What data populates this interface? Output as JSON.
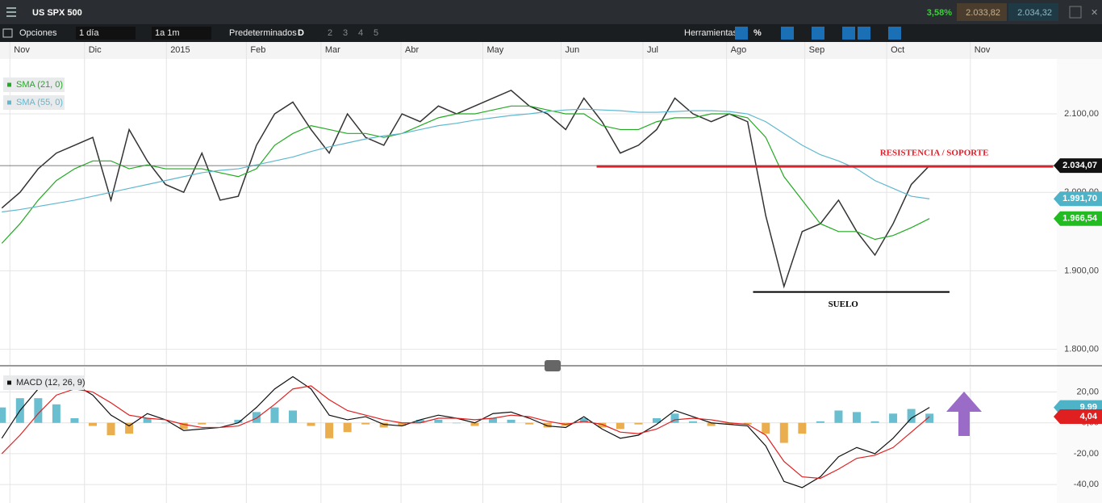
{
  "header": {
    "symbol": "US SPX 500",
    "change": "3,58%",
    "sell": "2.033,82",
    "buy": "2.034,32"
  },
  "toolbar": {
    "options": "Opciones",
    "interval": "1 día",
    "range": "1a 1m",
    "preset": "Predeterminados",
    "layouts": [
      "D",
      "2",
      "3",
      "4",
      "5"
    ],
    "tools": "Herramientas",
    "percent": "%"
  },
  "chart_data": [
    {
      "type": "line",
      "xlim": [
        -0.1,
        58
      ],
      "xticks": [
        {
          "value": 0.8,
          "label": "Nov"
        },
        {
          "value": 4.9,
          "label": "Dic"
        },
        {
          "value": 9.4,
          "label": "2015"
        },
        {
          "value": 13.8,
          "label": "Feb"
        },
        {
          "value": 17.9,
          "label": "Mar"
        },
        {
          "value": 22.3,
          "label": "Abr"
        },
        {
          "value": 26.8,
          "label": "May"
        },
        {
          "value": 31.1,
          "label": "Jun"
        },
        {
          "value": 35.6,
          "label": "Jul"
        },
        {
          "value": 40.2,
          "label": "Ago"
        },
        {
          "value": 44.5,
          "label": "Sep"
        },
        {
          "value": 49.0,
          "label": "Oct"
        },
        {
          "value": 53.6,
          "label": "Nov"
        }
      ],
      "ylim": [
        1780,
        2170
      ],
      "yticks": [
        {
          "value": 1800,
          "label": "1.800,00"
        },
        {
          "value": 1900,
          "label": "1.900,00"
        },
        {
          "value": 2000,
          "label": "2.000,00"
        },
        {
          "value": 2100,
          "label": "2.100,00"
        }
      ],
      "grid": true,
      "x": [
        0,
        1,
        2,
        3,
        4,
        5,
        6,
        7,
        8,
        9,
        10,
        11,
        12,
        13,
        14,
        15,
        16,
        17,
        18,
        19,
        20,
        21,
        22,
        23,
        24,
        25,
        26,
        27,
        28,
        29,
        30,
        31,
        32,
        33,
        34,
        35,
        36,
        37,
        38,
        39,
        40,
        41,
        42,
        43,
        44,
        45,
        46,
        47,
        48,
        49,
        50,
        51
      ],
      "series": [
        {
          "color": "#333333",
          "values": [
            1980,
            2000,
            2030,
            2050,
            2060,
            2070,
            1990,
            2080,
            2040,
            2010,
            2000,
            2050,
            1990,
            1995,
            2060,
            2100,
            2115,
            2080,
            2050,
            2100,
            2070,
            2060,
            2100,
            2090,
            2110,
            2100,
            2110,
            2120,
            2130,
            2110,
            2100,
            2080,
            2120,
            2090,
            2050,
            2060,
            2080,
            2120,
            2100,
            2090,
            2100,
            2090,
            1970,
            1880,
            1950,
            1960,
            1990,
            1950,
            1920,
            1960,
            2010,
            2034.07
          ]
        },
        {
          "name": "SMA (21, 0)",
          "color": "#22aa22",
          "values": [
            1935,
            1960,
            1990,
            2015,
            2030,
            2040,
            2040,
            2030,
            2035,
            2030,
            2030,
            2030,
            2025,
            2020,
            2030,
            2060,
            2075,
            2085,
            2080,
            2075,
            2075,
            2070,
            2075,
            2085,
            2095,
            2100,
            2100,
            2105,
            2110,
            2110,
            2105,
            2100,
            2100,
            2085,
            2080,
            2080,
            2090,
            2095,
            2095,
            2100,
            2100,
            2095,
            2070,
            2020,
            1990,
            1960,
            1950,
            1950,
            1940,
            1945,
            1955,
            1966.54
          ]
        },
        {
          "name": "SMA (55, 0)",
          "color": "#5fb8d0",
          "values": [
            1975,
            1978,
            1982,
            1986,
            1990,
            1995,
            2000,
            2005,
            2010,
            2015,
            2020,
            2025,
            2028,
            2030,
            2035,
            2040,
            2045,
            2052,
            2058,
            2063,
            2068,
            2072,
            2075,
            2080,
            2085,
            2088,
            2092,
            2095,
            2098,
            2100,
            2103,
            2105,
            2106,
            2105,
            2104,
            2102,
            2102,
            2103,
            2104,
            2104,
            2103,
            2100,
            2090,
            2075,
            2060,
            2048,
            2040,
            2030,
            2015,
            2005,
            1995,
            1991.7
          ]
        }
      ],
      "price_tags": [
        {
          "value": 2034.07,
          "label": "2.034,07",
          "color": "#111111"
        },
        {
          "value": 1991.7,
          "label": "1.991,70",
          "color": "#4fb3c8"
        },
        {
          "value": 1966.54,
          "label": "1.966,54",
          "color": "#22bb22"
        }
      ],
      "annotations": [
        {
          "text": "RESISTENCIA / SOPORTE",
          "value": 2033,
          "x": [
            32.7,
            57.8
          ],
          "color": "#e0202a"
        },
        {
          "text": "SUELO",
          "value": 1873,
          "x": [
            41.3,
            52.1
          ],
          "color": "#000000"
        }
      ]
    },
    {
      "type": "line",
      "title": "MACD (12, 26, 9)",
      "xlim": [
        -0.1,
        58
      ],
      "ylim": [
        -52,
        36
      ],
      "yticks": [
        {
          "value": 20,
          "label": "20,00"
        },
        {
          "value": 0,
          "label": "0,00"
        },
        {
          "value": -20,
          "label": "-20,00"
        },
        {
          "value": -40,
          "label": "-40,00"
        }
      ],
      "x": [
        0,
        1,
        2,
        3,
        4,
        5,
        6,
        7,
        8,
        9,
        10,
        11,
        12,
        13,
        14,
        15,
        16,
        17,
        18,
        19,
        20,
        21,
        22,
        23,
        24,
        25,
        26,
        27,
        28,
        29,
        30,
        31,
        32,
        33,
        34,
        35,
        36,
        37,
        38,
        39,
        40,
        41,
        42,
        43,
        44,
        45,
        46,
        47,
        48,
        49,
        50,
        51
      ],
      "series": [
        {
          "kind": "bar",
          "color": "#4fb3c8",
          "negative_color": "#e8a030",
          "values": [
            10,
            16,
            16,
            12,
            3,
            -2,
            -8,
            -7,
            3,
            0,
            -4,
            -1,
            0,
            2,
            7,
            10,
            8,
            -2,
            -10,
            -6,
            -1,
            -3,
            -2,
            2,
            2,
            0,
            -2,
            3,
            2,
            -1,
            -3,
            -2,
            3,
            -3,
            -4,
            -1,
            3,
            6,
            1,
            -2,
            -1,
            -1,
            -7,
            -13,
            -7,
            1,
            8,
            7,
            1,
            6,
            9,
            5.95
          ]
        },
        {
          "color": "#111111",
          "values": [
            -10,
            8,
            22,
            30,
            25,
            18,
            5,
            -2,
            6,
            2,
            -5,
            -4,
            -3,
            0,
            10,
            22,
            30,
            22,
            5,
            2,
            4,
            -1,
            -2,
            2,
            5,
            3,
            0,
            6,
            7,
            3,
            -2,
            -3,
            4,
            -4,
            -10,
            -8,
            -1,
            8,
            4,
            0,
            -1,
            -2,
            -15,
            -38,
            -42,
            -35,
            -22,
            -16,
            -20,
            -10,
            3,
            9.99
          ]
        },
        {
          "color": "#e02020",
          "values": [
            -20,
            -8,
            6,
            18,
            22,
            20,
            13,
            5,
            3,
            2,
            -1,
            -3,
            -3,
            -2,
            3,
            12,
            22,
            24,
            15,
            8,
            5,
            2,
            0,
            0,
            3,
            3,
            2,
            3,
            5,
            4,
            1,
            -1,
            1,
            -1,
            -6,
            -7,
            -4,
            2,
            3,
            2,
            0,
            -1,
            -8,
            -25,
            -35,
            -36,
            -30,
            -23,
            -21,
            -16,
            -6,
            4.04
          ]
        }
      ],
      "price_tags": [
        {
          "value": 9.99,
          "label": "9,99",
          "color": "#4fb3c8"
        },
        {
          "value": 4.04,
          "label": "4,04",
          "color": "#e02020"
        }
      ]
    }
  ]
}
